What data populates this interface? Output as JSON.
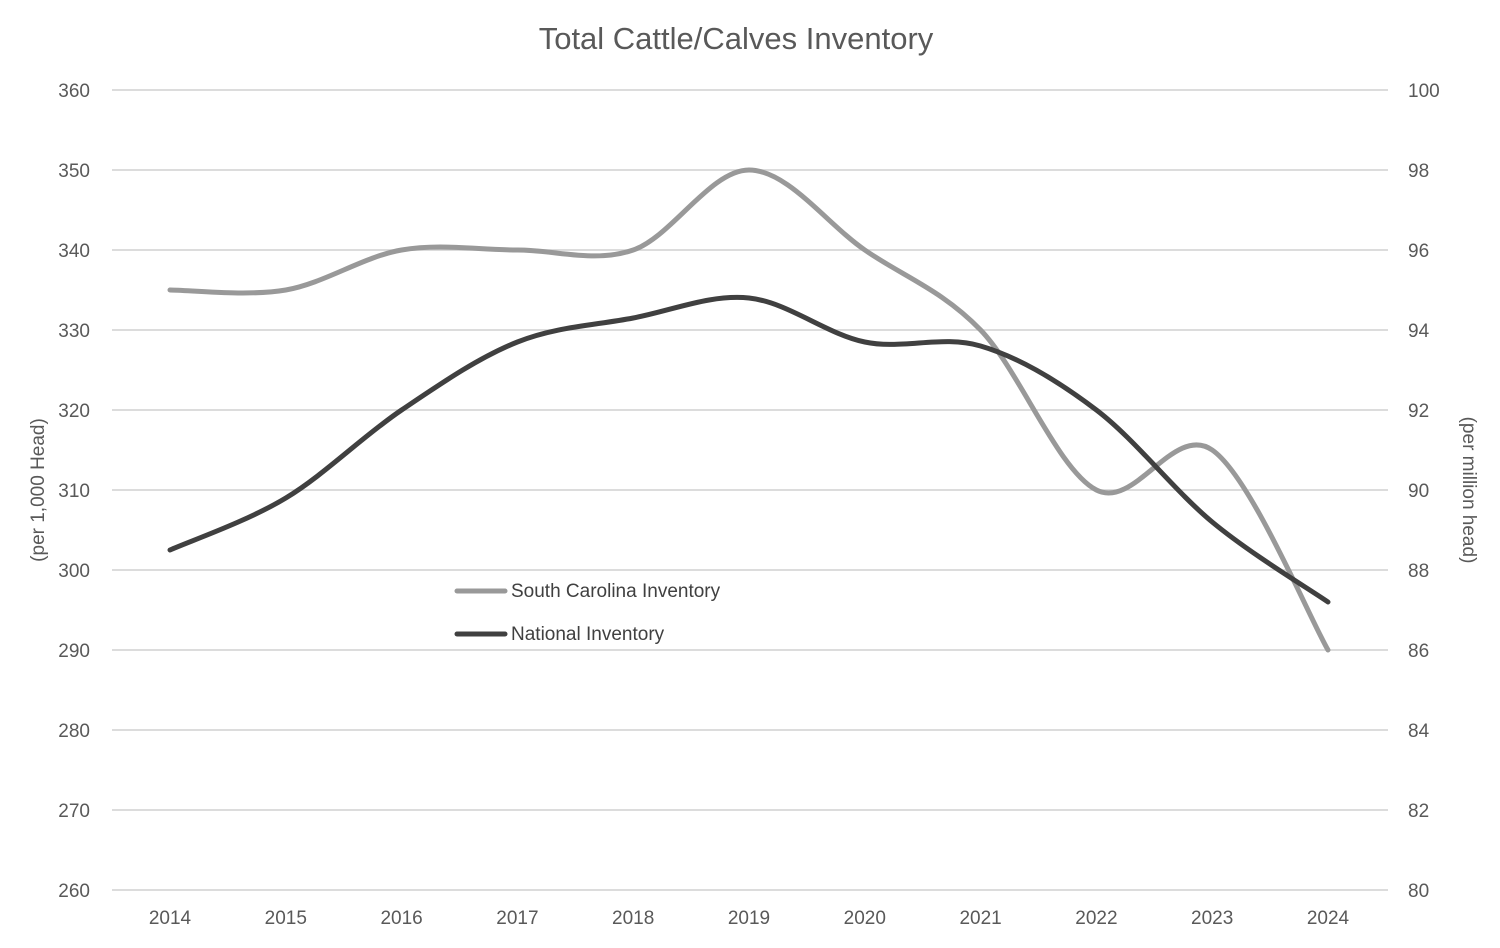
{
  "chart_data": {
    "type": "line",
    "title": "Total Cattle/Calves Inventory",
    "ylabel": "(per 1,000 Head)",
    "y2label": "(per million head)",
    "categories": [
      "2014",
      "2015",
      "2016",
      "2017",
      "2018",
      "2019",
      "2020",
      "2021",
      "2022",
      "2023",
      "2024"
    ],
    "ylim": [
      260,
      360
    ],
    "yticks": [
      "360",
      "350",
      "340",
      "330",
      "320",
      "310",
      "300",
      "290",
      "280",
      "270",
      "260"
    ],
    "y2lim": [
      80,
      100
    ],
    "y2ticks": [
      "100",
      "98",
      "96",
      "94",
      "92",
      "90",
      "88",
      "86",
      "84",
      "82",
      "80"
    ],
    "grid": true,
    "legend_position": "center-left",
    "series": [
      {
        "name": "South Carolina Inventory",
        "axis": "left",
        "color": "#999999",
        "values": [
          335,
          335,
          340,
          340,
          340,
          350,
          340,
          330,
          310,
          315,
          290
        ]
      },
      {
        "name": "National Inventory",
        "axis": "right",
        "color": "#404040",
        "values": [
          88.5,
          89.8,
          92.0,
          93.7,
          94.3,
          94.8,
          93.7,
          93.6,
          92.0,
          89.2,
          87.2
        ]
      }
    ]
  }
}
